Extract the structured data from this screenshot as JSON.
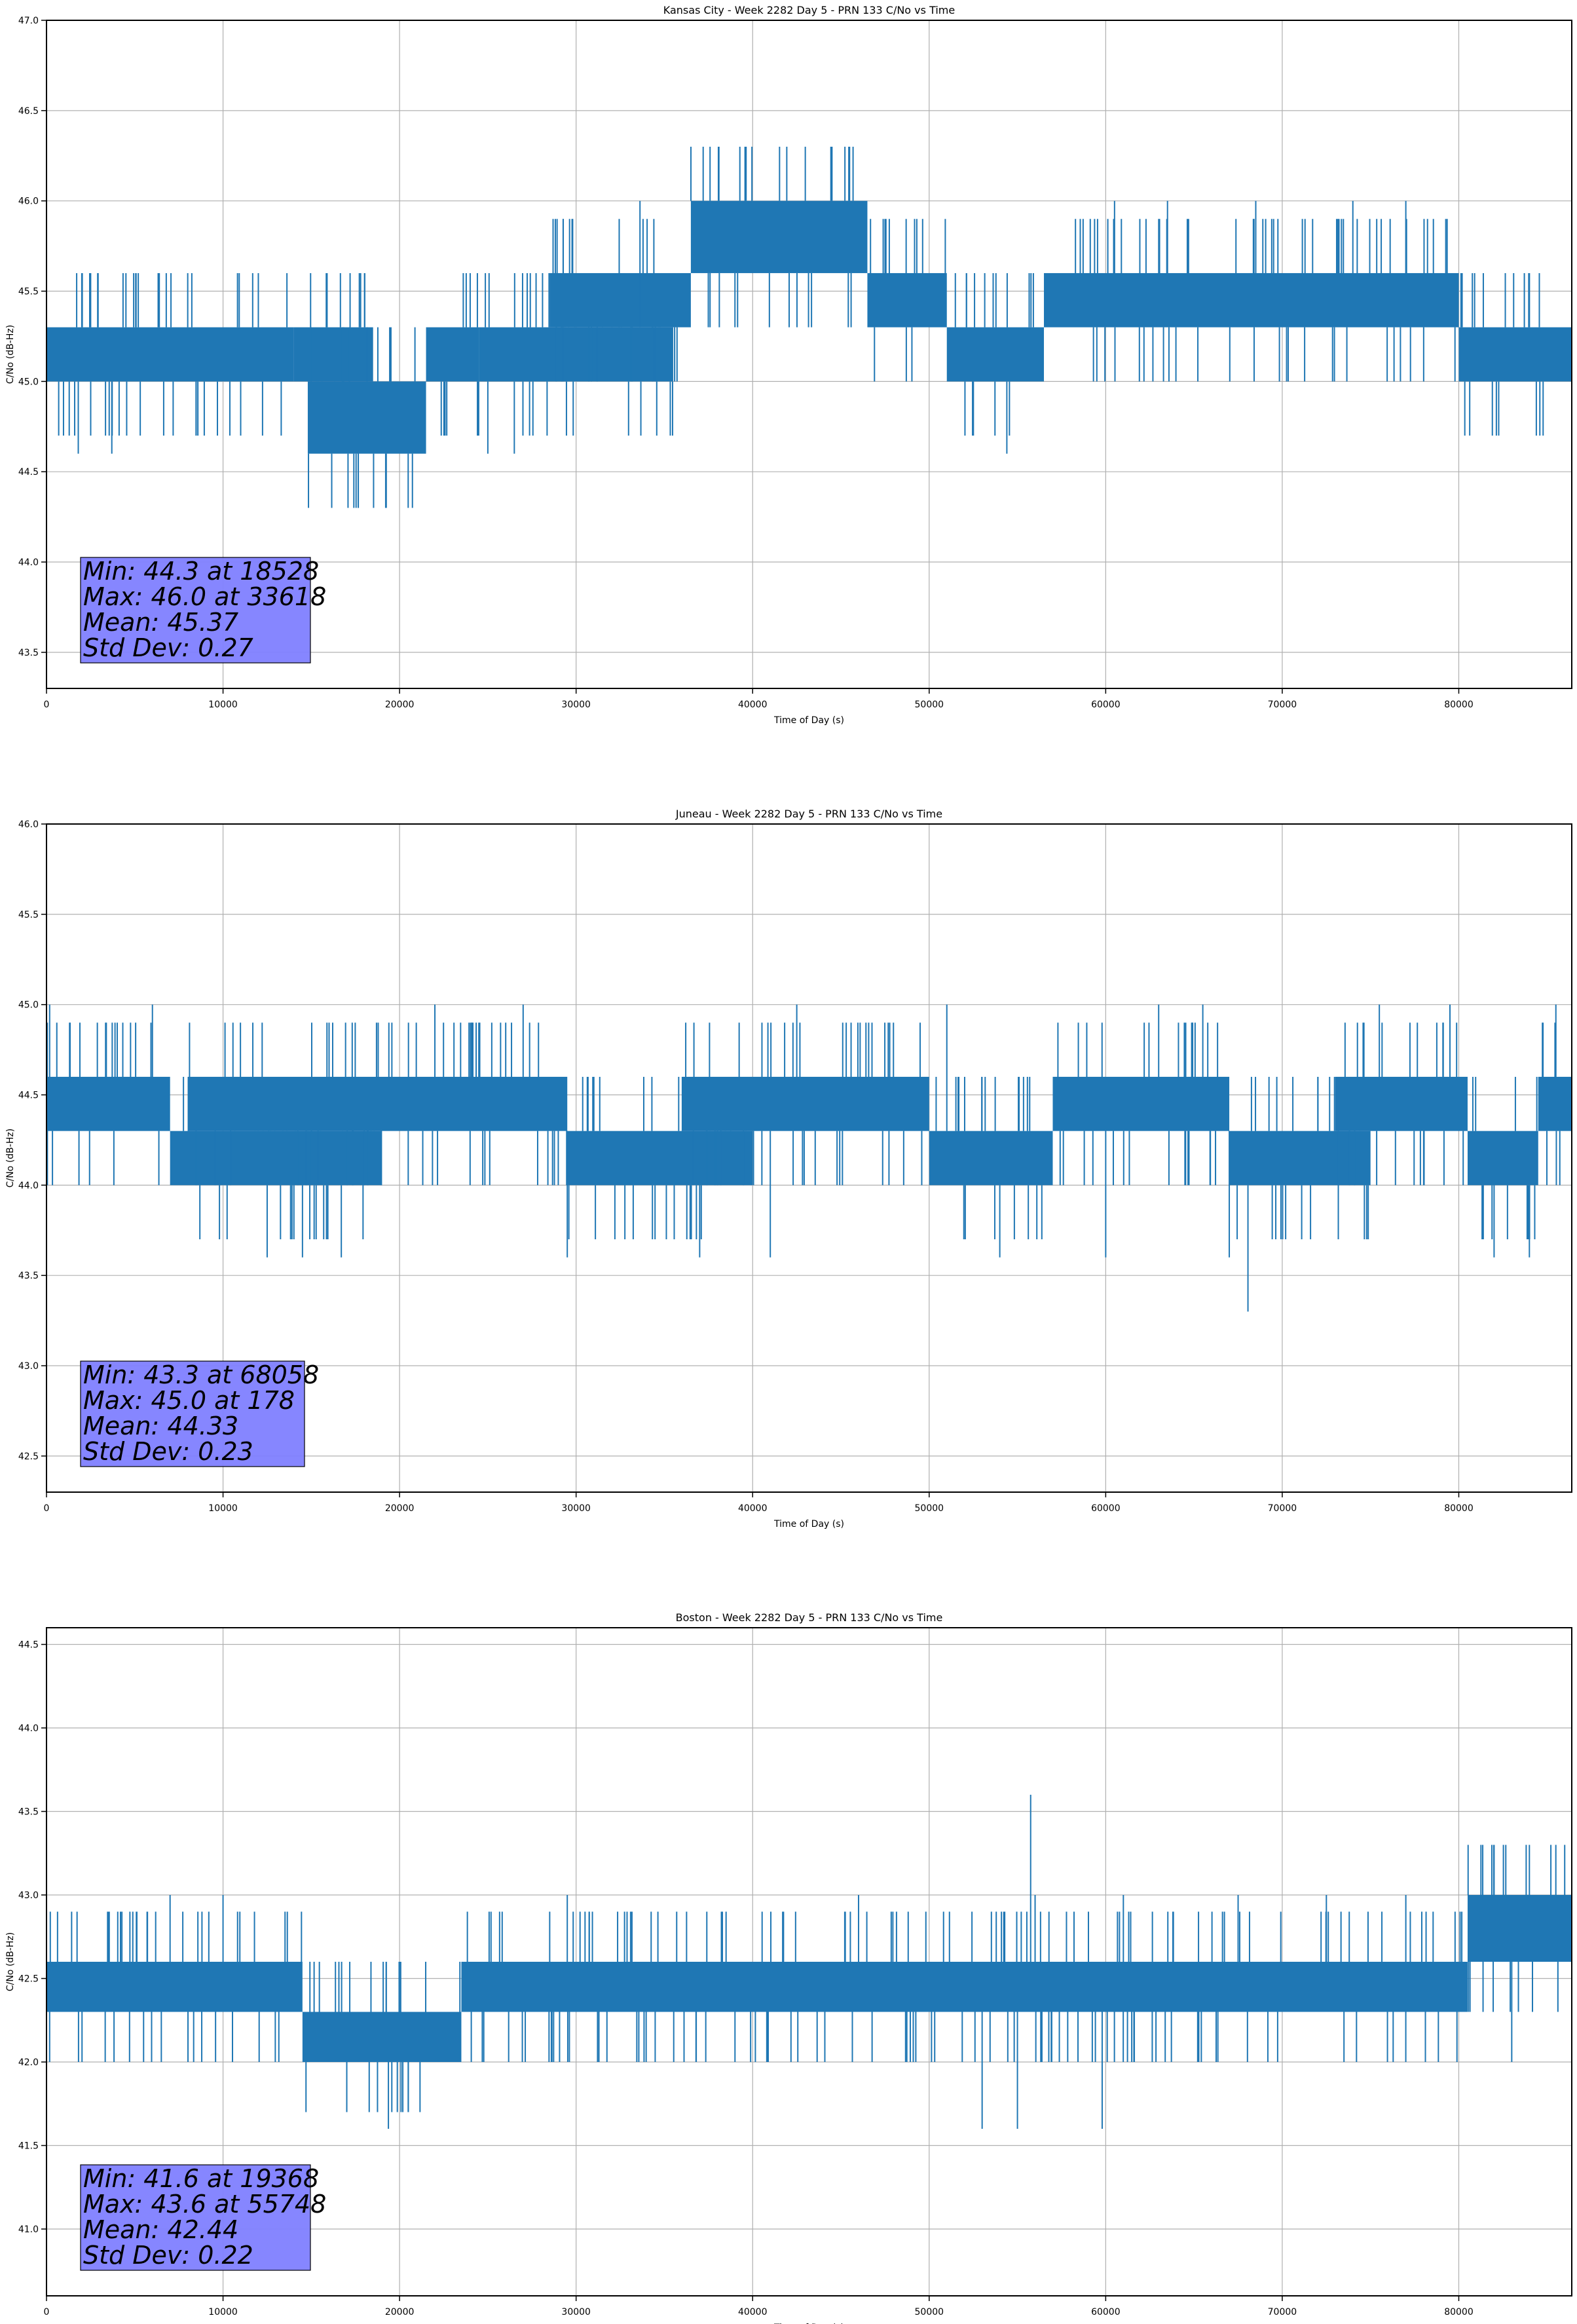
{
  "colors": {
    "series": "#1f77b4",
    "grid": "#b0b0b0",
    "stats_box": "#8080ff"
  },
  "chart_data": [
    {
      "type": "line",
      "title": "Kansas City - Week 2282 Day 5 - PRN 133 C/No vs Time",
      "xlabel": "Time of Day (s)",
      "ylabel": "C/No (dB-Hz)",
      "xlim": [
        0,
        86400
      ],
      "ylim": [
        43.3,
        47.0
      ],
      "xticks": [
        0,
        10000,
        20000,
        30000,
        40000,
        50000,
        60000,
        70000,
        80000
      ],
      "yticks": [
        "43.5",
        "44.0",
        "44.5",
        "45.0",
        "45.5",
        "46.0",
        "46.5",
        "47.0"
      ],
      "grid": true,
      "stats": [
        "Min: 44.3 at 18528",
        "Max: 46.0 at 33618",
        "Mean: 45.37",
        "Std Dev: 0.27"
      ],
      "segments": [
        {
          "x": [
            0,
            14000
          ],
          "base": 45.0,
          "top": 45.3
        },
        {
          "x": [
            14000,
            18500
          ],
          "base": 45.0,
          "top": 45.3
        },
        {
          "x": [
            14800,
            21500
          ],
          "base": 44.6,
          "top": 45.0
        },
        {
          "x": [
            21500,
            24500
          ],
          "base": 45.0,
          "top": 45.3
        },
        {
          "x": [
            24500,
            35500
          ],
          "base": 45.0,
          "top": 45.3
        },
        {
          "x": [
            28500,
            36500
          ],
          "base": 45.3,
          "top": 45.6
        },
        {
          "x": [
            36500,
            46500
          ],
          "base": 45.6,
          "top": 46.0
        },
        {
          "x": [
            46500,
            51000
          ],
          "base": 45.3,
          "top": 45.6
        },
        {
          "x": [
            51000,
            56500
          ],
          "base": 45.0,
          "top": 45.3
        },
        {
          "x": [
            56500,
            80000
          ],
          "base": 45.3,
          "top": 45.6
        },
        {
          "x": [
            80000,
            86400
          ],
          "base": 45.0,
          "top": 45.3
        }
      ],
      "spikes": [
        [
          18528,
          44.3
        ],
        [
          3700,
          44.6
        ],
        [
          1800,
          44.6
        ],
        [
          25000,
          44.6
        ],
        [
          26500,
          44.6
        ],
        [
          54400,
          44.6
        ],
        [
          33618,
          46.0
        ],
        [
          39000,
          46.0
        ],
        [
          44000,
          46.0
        ],
        [
          60500,
          46.0
        ],
        [
          63500,
          46.0
        ],
        [
          68500,
          46.0
        ],
        [
          74000,
          46.0
        ],
        [
          77000,
          46.0
        ],
        [
          2000,
          45.6
        ],
        [
          4500,
          45.6
        ],
        [
          8000,
          45.6
        ],
        [
          12000,
          45.6
        ],
        [
          24000,
          45.6
        ],
        [
          58000,
          45.6
        ]
      ]
    },
    {
      "type": "line",
      "title": "Juneau - Week 2282 Day 5 - PRN 133 C/No vs Time",
      "xlabel": "Time of Day (s)",
      "ylabel": "C/No (dB-Hz)",
      "xlim": [
        0,
        86400
      ],
      "ylim": [
        42.3,
        46.0
      ],
      "xticks": [
        0,
        10000,
        20000,
        30000,
        40000,
        50000,
        60000,
        70000,
        80000
      ],
      "yticks": [
        "42.5",
        "43.0",
        "43.5",
        "44.0",
        "44.5",
        "45.0",
        "45.5",
        "46.0"
      ],
      "grid": true,
      "stats": [
        "Min: 43.3 at 68058",
        "Max: 45.0 at 178",
        "Mean: 44.33",
        "Std Dev: 0.23"
      ],
      "segments": [
        {
          "x": [
            0,
            7000
          ],
          "base": 44.3,
          "top": 44.6
        },
        {
          "x": [
            7000,
            19000
          ],
          "base": 44.0,
          "top": 44.3
        },
        {
          "x": [
            8000,
            29500
          ],
          "base": 44.3,
          "top": 44.6
        },
        {
          "x": [
            29500,
            40000
          ],
          "base": 44.0,
          "top": 44.3
        },
        {
          "x": [
            36000,
            50000
          ],
          "base": 44.3,
          "top": 44.6
        },
        {
          "x": [
            50000,
            57000
          ],
          "base": 44.0,
          "top": 44.3
        },
        {
          "x": [
            57000,
            67000
          ],
          "base": 44.3,
          "top": 44.6
        },
        {
          "x": [
            67000,
            75000
          ],
          "base": 44.0,
          "top": 44.3
        },
        {
          "x": [
            73000,
            80500
          ],
          "base": 44.3,
          "top": 44.6
        },
        {
          "x": [
            80500,
            84500
          ],
          "base": 44.0,
          "top": 44.3
        },
        {
          "x": [
            84500,
            86400
          ],
          "base": 44.3,
          "top": 44.6
        }
      ],
      "spikes": [
        [
          68058,
          43.3
        ],
        [
          12500,
          43.6
        ],
        [
          14500,
          43.6
        ],
        [
          16700,
          43.6
        ],
        [
          29500,
          43.6
        ],
        [
          37000,
          43.6
        ],
        [
          41000,
          43.6
        ],
        [
          54000,
          43.6
        ],
        [
          60000,
          43.6
        ],
        [
          67000,
          43.6
        ],
        [
          82000,
          43.6
        ],
        [
          84000,
          43.6
        ],
        [
          178,
          45.0
        ],
        [
          6000,
          45.0
        ],
        [
          22000,
          45.0
        ],
        [
          27000,
          45.0
        ],
        [
          42500,
          45.0
        ],
        [
          51000,
          45.0
        ],
        [
          63000,
          45.0
        ],
        [
          65500,
          45.0
        ],
        [
          75500,
          45.0
        ],
        [
          79500,
          45.0
        ],
        [
          85500,
          45.0
        ]
      ]
    },
    {
      "type": "line",
      "title": "Boston - Week 2282 Day 5 - PRN 133 C/No vs Time",
      "xlabel": "Time of Day (s)",
      "ylabel": "C/No (dB-Hz)",
      "xlim": [
        0,
        86400
      ],
      "ylim": [
        40.6,
        44.6
      ],
      "xticks": [
        0,
        10000,
        20000,
        30000,
        40000,
        50000,
        60000,
        70000,
        80000
      ],
      "yticks": [
        "41.0",
        "41.5",
        "42.0",
        "42.5",
        "43.0",
        "43.5",
        "44.0",
        "44.5"
      ],
      "grid": true,
      "stats": [
        "Min: 41.6 at 19368",
        "Max: 43.6 at 55748",
        "Mean: 42.44",
        "Std Dev: 0.22"
      ],
      "segments": [
        {
          "x": [
            0,
            14500
          ],
          "base": 42.3,
          "top": 42.6
        },
        {
          "x": [
            14500,
            23500
          ],
          "base": 42.0,
          "top": 42.3
        },
        {
          "x": [
            23500,
            80500
          ],
          "base": 42.3,
          "top": 42.6
        },
        {
          "x": [
            80500,
            86400
          ],
          "base": 42.6,
          "top": 43.0
        }
      ],
      "spikes": [
        [
          19368,
          41.6
        ],
        [
          53000,
          41.6
        ],
        [
          55000,
          41.6
        ],
        [
          59800,
          41.6
        ],
        [
          55748,
          43.6
        ],
        [
          86000,
          43.3
        ],
        [
          82000,
          43.3
        ],
        [
          84000,
          43.3
        ],
        [
          7000,
          43.0
        ],
        [
          10000,
          43.0
        ],
        [
          29500,
          43.0
        ],
        [
          46000,
          43.0
        ],
        [
          56000,
          43.0
        ],
        [
          61000,
          43.0
        ],
        [
          67500,
          43.0
        ],
        [
          72500,
          43.0
        ],
        [
          77000,
          43.0
        ],
        [
          5500,
          42.0
        ],
        [
          39000,
          42.0
        ],
        [
          83000,
          42.0
        ]
      ]
    }
  ]
}
